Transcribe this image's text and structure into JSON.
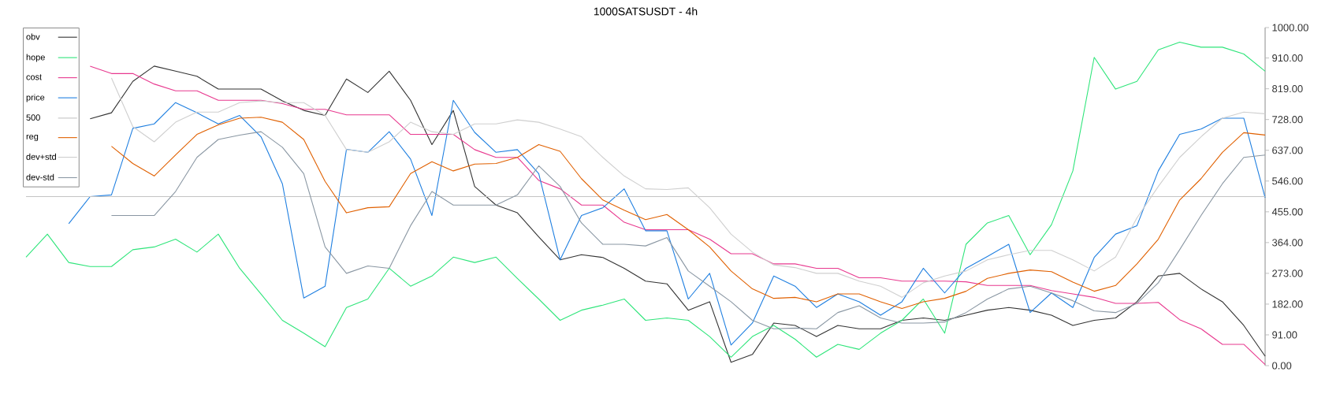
{
  "chart_data": {
    "type": "line",
    "title": "1000SATSUSDT - 4h",
    "categories": [
      null,
      null,
      null,
      null,
      null,
      null,
      null,
      null,
      null,
      null,
      null,
      null,
      null,
      null,
      null,
      null,
      null,
      null,
      null,
      null,
      null,
      null,
      null,
      null,
      null,
      null,
      null,
      null,
      null,
      null,
      null,
      null,
      null,
      null,
      null,
      null,
      null,
      null,
      null,
      null,
      null,
      null,
      null,
      null,
      null,
      null,
      null,
      null,
      null,
      null,
      null,
      null,
      null,
      null,
      null,
      null,
      null,
      null,
      null
    ],
    "ylim": [
      0,
      1000
    ],
    "yticks": [
      {
        "value": 0,
        "label": "0.00"
      },
      {
        "value": 91,
        "label": "91.00"
      },
      {
        "value": 182,
        "label": "182.00"
      },
      {
        "value": 273,
        "label": "273.00"
      },
      {
        "value": 364,
        "label": "364.00"
      },
      {
        "value": 455,
        "label": "455.00"
      },
      {
        "value": 546,
        "label": "546.00"
      },
      {
        "value": 637,
        "label": "637.00"
      },
      {
        "value": 728,
        "label": "728.00"
      },
      {
        "value": 819,
        "label": "819.00"
      },
      {
        "value": 910,
        "label": "910.00"
      },
      {
        "value": 1000,
        "label": "1000.00"
      }
    ],
    "tick_labels": "y",
    "legend": "top left",
    "marker": "none",
    "line_style": "solid",
    "series": [
      {
        "name": "obv",
        "color": "#333333",
        "values": [
          null,
          null,
          null,
          730,
          748,
          841,
          886,
          871,
          856,
          818,
          818,
          818,
          783,
          755,
          740,
          848,
          808,
          871,
          785,
          654,
          755,
          530,
          475,
          452,
          381,
          313,
          328,
          320,
          288,
          250,
          242,
          164,
          189,
          10,
          33,
          126,
          119,
          86,
          119,
          109,
          109,
          134,
          141,
          134,
          149,
          164,
          172,
          164,
          149,
          119,
          134,
          141,
          189,
          265,
          273,
          227,
          189,
          119,
          28
        ]
      },
      {
        "name": "hope",
        "color": "#2ee57a",
        "values": [
          321,
          389,
          305,
          293,
          293,
          343,
          351,
          374,
          336,
          389,
          288,
          212,
          134,
          96,
          56,
          172,
          197,
          288,
          235,
          265,
          321,
          305,
          321,
          258,
          197,
          134,
          164,
          179,
          197,
          134,
          141,
          134,
          86,
          25,
          86,
          119,
          78,
          25,
          63,
          48,
          96,
          134,
          197,
          96,
          359,
          422,
          444,
          328,
          417,
          576,
          912,
          818,
          841,
          934,
          957,
          942,
          942,
          922,
          871
        ]
      },
      {
        "name": "cost",
        "color": "#e8398f",
        "values": [
          null,
          null,
          null,
          886,
          864,
          864,
          833,
          813,
          813,
          785,
          785,
          785,
          775,
          758,
          758,
          742,
          742,
          742,
          684,
          684,
          684,
          639,
          616,
          616,
          548,
          523,
          475,
          475,
          424,
          402,
          402,
          402,
          374,
          331,
          331,
          301,
          301,
          288,
          288,
          260,
          260,
          250,
          250,
          250,
          248,
          237,
          237,
          237,
          222,
          212,
          202,
          184,
          184,
          187,
          136,
          109,
          63,
          63,
          3
        ]
      },
      {
        "name": "price",
        "color": "#1f7fe0",
        "values": [
          null,
          null,
          420,
          500,
          505,
          702,
          715,
          778,
          748,
          715,
          740,
          677,
          538,
          200,
          235,
          640,
          631,
          692,
          611,
          444,
          785,
          690,
          631,
          639,
          568,
          313,
          444,
          467,
          523,
          399,
          399,
          197,
          273,
          61,
          126,
          265,
          235,
          172,
          212,
          189,
          149,
          189,
          288,
          215,
          288,
          323,
          359,
          157,
          215,
          172,
          320,
          389,
          414,
          576,
          684,
          700,
          732,
          732,
          497
        ]
      },
      {
        "name": "500",
        "color": "#c4c4c4",
        "values": [
          500,
          500,
          500,
          500,
          500,
          500,
          500,
          500,
          500,
          500,
          500,
          500,
          500,
          500,
          500,
          500,
          500,
          500,
          500,
          500,
          500,
          500,
          500,
          500,
          500,
          500,
          500,
          500,
          500,
          500,
          500,
          500,
          500,
          500,
          500,
          500,
          500,
          500,
          500,
          500,
          500,
          500,
          500,
          500,
          500,
          500,
          500,
          500,
          500,
          500,
          500,
          500,
          500,
          500,
          500,
          500,
          500,
          500,
          500
        ]
      },
      {
        "name": "reg",
        "color": "#e06000",
        "values": [
          null,
          null,
          null,
          null,
          649,
          598,
          561,
          623,
          684,
          712,
          732,
          735,
          720,
          669,
          545,
          452,
          467,
          470,
          568,
          603,
          576,
          596,
          598,
          616,
          654,
          634,
          553,
          490,
          460,
          432,
          447,
          402,
          351,
          280,
          227,
          199,
          202,
          189,
          212,
          212,
          189,
          169,
          189,
          199,
          220,
          258,
          273,
          283,
          278,
          247,
          220,
          237,
          301,
          374,
          490,
          553,
          631,
          689,
          682
        ]
      },
      {
        "name": "dev+std",
        "color": "#cfcfcf",
        "values": [
          null,
          null,
          null,
          null,
          851,
          707,
          662,
          720,
          750,
          750,
          778,
          783,
          778,
          778,
          740,
          639,
          631,
          662,
          720,
          692,
          684,
          715,
          715,
          727,
          720,
          700,
          677,
          616,
          561,
          523,
          521,
          526,
          467,
          389,
          336,
          298,
          290,
          273,
          273,
          250,
          235,
          202,
          245,
          265,
          280,
          313,
          328,
          341,
          341,
          313,
          280,
          321,
          437,
          530,
          616,
          677,
          732,
          750,
          745
        ]
      },
      {
        "name": "dev-std",
        "color": "#8a97a3",
        "values": [
          null,
          null,
          null,
          null,
          444,
          444,
          444,
          515,
          616,
          669,
          682,
          692,
          646,
          568,
          351,
          273,
          295,
          288,
          414,
          515,
          475,
          475,
          475,
          505,
          591,
          530,
          422,
          359,
          359,
          354,
          379,
          280,
          235,
          189,
          134,
          109,
          111,
          109,
          157,
          177,
          141,
          126,
          126,
          129,
          157,
          197,
          227,
          235,
          215,
          192,
          162,
          157,
          184,
          245,
          343,
          444,
          538,
          616,
          623
        ]
      }
    ]
  }
}
